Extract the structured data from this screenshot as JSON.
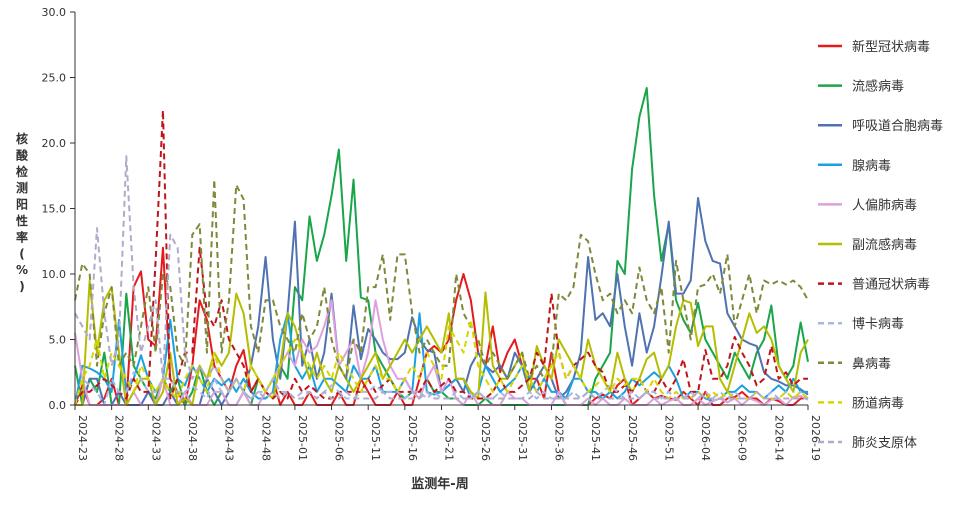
{
  "chart_data": {
    "type": "line",
    "ylabel": "核酸检测阳性率(%)",
    "xlabel": "监测年-周",
    "ylim": [
      0,
      30
    ],
    "yticks": [
      "0.0",
      "5.0",
      "10.0",
      "15.0",
      "20.0",
      "25.0",
      "30.0"
    ],
    "categories": [
      "2024-23",
      "2024-24",
      "2024-25",
      "2024-26",
      "2024-27",
      "2024-28",
      "2024-29",
      "2024-30",
      "2024-31",
      "2024-32",
      "2024-33",
      "2024-34",
      "2024-35",
      "2024-36",
      "2024-37",
      "2024-38",
      "2024-39",
      "2024-40",
      "2024-41",
      "2024-42",
      "2024-43",
      "2024-44",
      "2024-45",
      "2024-46",
      "2024-47",
      "2024-48",
      "2024-49",
      "2024-50",
      "2024-51",
      "2024-52",
      "2025-01",
      "2025-02",
      "2025-03",
      "2025-04",
      "2025-05",
      "2025-06",
      "2025-07",
      "2025-08",
      "2025-09",
      "2025-10",
      "2025-11",
      "2025-12",
      "2025-13",
      "2025-14",
      "2025-15",
      "2025-16",
      "2025-17",
      "2025-18",
      "2025-19",
      "2025-20",
      "2025-21",
      "2025-22",
      "2025-23",
      "2025-24",
      "2025-25",
      "2025-26",
      "2025-27",
      "2025-28",
      "2025-29",
      "2025-30",
      "2025-31",
      "2025-32",
      "2025-33",
      "2025-34",
      "2025-35",
      "2025-36",
      "2025-37",
      "2025-38",
      "2025-39",
      "2025-40",
      "2025-41",
      "2025-42",
      "2025-43",
      "2025-44",
      "2025-45",
      "2025-46",
      "2025-47",
      "2025-48",
      "2025-49",
      "2025-50",
      "2025-51",
      "2025-52",
      "2026-01",
      "2026-02",
      "2026-03",
      "2026-04",
      "2026-05",
      "2026-06",
      "2026-07",
      "2026-08",
      "2026-09",
      "2026-10",
      "2026-11",
      "2026-12",
      "2026-13",
      "2026-14",
      "2026-15",
      "2026-16",
      "2026-17",
      "2026-18",
      "2026-19"
    ],
    "xticks": [
      "2024-23",
      "2024-28",
      "2024-33",
      "2024-38",
      "2024-43",
      "2024-48",
      "2025-01",
      "2025-06",
      "2025-11",
      "2025-16",
      "2025-21",
      "2025-26",
      "2025-31",
      "2025-36",
      "2025-41",
      "2025-46",
      "2025-51",
      "2026-04",
      "2026-09",
      "2026-14",
      "2026-19"
    ],
    "legend_position": "right",
    "series": [
      {
        "name": "新型冠状病毒",
        "color": "#e41a1c",
        "dashed": false,
        "values": [
          0,
          1.5,
          0,
          0,
          0.5,
          2,
          0,
          0,
          9,
          10.2,
          5,
          4.5,
          12,
          2,
          1,
          0,
          3,
          8,
          6.5,
          3,
          2,
          1,
          3,
          4.2,
          1,
          2,
          1,
          2,
          0,
          1,
          0,
          0,
          1,
          0,
          0,
          0,
          1,
          0,
          0,
          2,
          1,
          0,
          0,
          0,
          1,
          0,
          0,
          2,
          4,
          4.5,
          4,
          5,
          8,
          10,
          8,
          4,
          3,
          6,
          2.5,
          4,
          5,
          3,
          2,
          2,
          0.5,
          4,
          1,
          0,
          0,
          0,
          0,
          0.5,
          0.8,
          0.5,
          1.5,
          2,
          0,
          0.5,
          1,
          0.5,
          0.7,
          0.5,
          0.4,
          1,
          0.5,
          0,
          1,
          0,
          0,
          0.5,
          0.6,
          1,
          0.5,
          0.5,
          0,
          0.5,
          0.3,
          0,
          0,
          0.5,
          0.5
        ]
      },
      {
        "name": "流感病毒",
        "color": "#1aa54a",
        "dashed": false,
        "values": [
          3,
          0,
          2,
          1,
          4,
          0,
          0,
          8.5,
          3,
          2,
          1,
          0.5,
          2,
          1,
          2,
          0,
          1,
          3,
          1,
          0,
          1,
          0,
          0,
          1,
          0,
          2,
          1,
          2,
          3,
          2,
          9,
          8,
          14.4,
          11,
          13,
          16,
          19.5,
          11,
          17.2,
          8.2,
          8,
          4,
          3,
          2,
          1,
          0.5,
          1,
          0.5,
          2,
          1,
          1,
          0.5,
          0.5,
          0,
          0,
          0,
          0.5,
          0,
          0,
          0,
          0,
          0,
          0,
          0,
          0,
          0,
          0,
          0,
          0,
          0,
          0,
          2,
          3,
          4,
          11,
          10,
          18,
          22,
          24.2,
          16,
          11,
          13.8,
          8,
          6.5,
          5.5,
          7.8,
          5,
          4,
          3,
          2,
          4,
          3,
          2,
          4,
          5,
          7.6,
          3,
          2,
          3,
          6.3,
          3.3
        ]
      },
      {
        "name": "呼吸道合胞病毒",
        "color": "#4f72b0",
        "dashed": false,
        "values": [
          0,
          0,
          2,
          2,
          0,
          0,
          1,
          0,
          0,
          0,
          1,
          0,
          0,
          1,
          0,
          1,
          0,
          0,
          2,
          1,
          0,
          1,
          2,
          1,
          3,
          6,
          11.3,
          5,
          2,
          7,
          14,
          3,
          5,
          2,
          4,
          8.5,
          3,
          2,
          7.6,
          3.5,
          5.8,
          5,
          4,
          3.5,
          3.5,
          4,
          6.7,
          5,
          4.2,
          4,
          1,
          1.5,
          2,
          1,
          3,
          4,
          3,
          2.5,
          3,
          2,
          4,
          3,
          1,
          2,
          3,
          2,
          0.5,
          1,
          2,
          4,
          11.3,
          6.5,
          7,
          6,
          10,
          6,
          3,
          7,
          4,
          6,
          9.8,
          14,
          8.5,
          8.5,
          9.5,
          15.8,
          12.5,
          11,
          10.8,
          7,
          6,
          5,
          4.7,
          4.5,
          2.5,
          2,
          1.8,
          1.5,
          1.5,
          1.2,
          0.8
        ]
      },
      {
        "name": "腺病毒",
        "color": "#1ba1e2",
        "dashed": false,
        "values": [
          0,
          3,
          2.8,
          2.5,
          2,
          1,
          6.5,
          1,
          2,
          3.8,
          2,
          1,
          2,
          6.5,
          2,
          1.5,
          3,
          2,
          1,
          2,
          1.5,
          2,
          1,
          2,
          1,
          0.5,
          0.5,
          1,
          5,
          7,
          3,
          2,
          3,
          1,
          2,
          2,
          1.5,
          1,
          3,
          2,
          2,
          3,
          1,
          1,
          1,
          2,
          1,
          7,
          1,
          0.8,
          1,
          1.5,
          2,
          2,
          0.5,
          1,
          3,
          2,
          1,
          1.5,
          2,
          3,
          2,
          1,
          2,
          1,
          1,
          0.5,
          2,
          2,
          1,
          1,
          0.5,
          1,
          0.5,
          1,
          2,
          1.5,
          2,
          2.5,
          2,
          3,
          2,
          0.5,
          1,
          1,
          0.5,
          0.3,
          0.5,
          1,
          1,
          1.5,
          1,
          1,
          0.5,
          1,
          1.5,
          1,
          2,
          1,
          1
        ]
      },
      {
        "name": "人偏肺病毒",
        "color": "#dda0dd",
        "dashed": false,
        "values": [
          5.5,
          2,
          0,
          0,
          0,
          0,
          0,
          0,
          1,
          0,
          0,
          0,
          2,
          0,
          0,
          1,
          0,
          0,
          0,
          1,
          1,
          0,
          0,
          1,
          0,
          0,
          1,
          2,
          3,
          4,
          3,
          5,
          4,
          4.5,
          6,
          8,
          3,
          4,
          5,
          2,
          4,
          8,
          5,
          3,
          2,
          2,
          1,
          0.5,
          2,
          3,
          1,
          2,
          0.5,
          0,
          1,
          0,
          0,
          0,
          0,
          1,
          0.5,
          0.5,
          0,
          0,
          0,
          0,
          1,
          0,
          0,
          0,
          0.5,
          0,
          0.5,
          0,
          0,
          0.5,
          0,
          0,
          0,
          0.5,
          0,
          0.3,
          0.5,
          0,
          0,
          0.5,
          0,
          0.3,
          0.5,
          0.2,
          0.5,
          0,
          0.5,
          0.3,
          0,
          0.4,
          0.5,
          0,
          0.6,
          0.7,
          0.4
        ]
      },
      {
        "name": "副流感病毒",
        "color": "#b5bd00",
        "dashed": false,
        "values": [
          0,
          0,
          9.5,
          4,
          8,
          9,
          4,
          0,
          1,
          2,
          2,
          0,
          1,
          4,
          0,
          0.5,
          0,
          3,
          2,
          4,
          3,
          4,
          8.5,
          7,
          3,
          2,
          1,
          0.5,
          3,
          7,
          6,
          4,
          2,
          4,
          2,
          1,
          3,
          2,
          1,
          2,
          3,
          4,
          2,
          3,
          4,
          5,
          4,
          5,
          6,
          5,
          4,
          7,
          2,
          2,
          1,
          0.5,
          8.6,
          3,
          2,
          2,
          3,
          4,
          1,
          4.5,
          3,
          2,
          5,
          4,
          3,
          2,
          5,
          3,
          2,
          1,
          4,
          2,
          1,
          2,
          3.5,
          4,
          2,
          3,
          6,
          8,
          7.8,
          4.5,
          6,
          6,
          2,
          1,
          3,
          5,
          7,
          5.5,
          6,
          5,
          3,
          2,
          1,
          4,
          5
        ]
      },
      {
        "name": "普通冠状病毒",
        "color": "#c0141a",
        "dashed": true,
        "values": [
          0,
          1,
          1,
          1.5,
          2,
          1.5,
          1,
          0.5,
          2,
          1,
          1,
          11,
          22.5,
          0.5,
          2,
          4,
          4,
          12,
          7,
          6,
          8,
          5,
          4,
          3,
          1,
          2,
          1,
          0.5,
          1,
          0.5,
          2,
          1,
          1.5,
          1,
          0.5,
          0.5,
          1,
          1,
          1,
          1,
          2,
          1,
          1.5,
          2,
          1,
          1,
          1,
          1,
          2,
          1,
          1.5,
          2,
          1,
          1,
          0.5,
          0.5,
          0.5,
          1,
          2,
          1,
          1,
          1.5,
          2,
          4,
          3,
          8.5,
          4,
          2,
          3,
          3.5,
          4,
          3,
          2.5,
          1,
          1,
          1.5,
          1,
          2,
          1,
          1,
          2,
          1,
          2,
          3.5,
          1,
          1,
          4.2,
          2,
          2,
          3,
          5.2,
          4,
          3,
          1.5,
          2,
          4.5,
          2,
          2.5,
          1.5,
          2,
          2
        ]
      },
      {
        "name": "博卡病毒",
        "color": "#a7b9e3",
        "dashed": true,
        "values": [
          0,
          2,
          1.5,
          1,
          0,
          2,
          1,
          1,
          2.5,
          2,
          1,
          1,
          2,
          2,
          1,
          1,
          1.5,
          1,
          0.5,
          2,
          1,
          1,
          2,
          1,
          0.5,
          1,
          1,
          2,
          1,
          1,
          0.5,
          1,
          1,
          0.5,
          1,
          1.5,
          1,
          0.5,
          0.5,
          1,
          1,
          1.5,
          1,
          1,
          1,
          0.5,
          1,
          1,
          0.5,
          1,
          0.5,
          0.5,
          1,
          0.5,
          0.5,
          1,
          0.5,
          0.5,
          1,
          0.5,
          0.5,
          0.5,
          1,
          0.5,
          1,
          0.5,
          0.5,
          0.5,
          1,
          0.5,
          1,
          0.5,
          1,
          1.5,
          1,
          0.5,
          1,
          0.5,
          1,
          1,
          0.5,
          1,
          0.5,
          0.5,
          1,
          0.5,
          1,
          0.5,
          1,
          0.5,
          1,
          0.5,
          0.5,
          1,
          0.5,
          1,
          0.5,
          1,
          0.5,
          1,
          0.5
        ]
      },
      {
        "name": "鼻病毒",
        "color": "#7e8a3a",
        "dashed": true,
        "values": [
          8,
          10.8,
          10,
          3,
          7,
          9,
          3,
          4,
          3,
          6,
          9,
          4,
          10,
          9,
          4,
          3,
          13,
          13.8,
          4,
          17.2,
          4,
          8,
          16.8,
          15.7,
          6,
          4,
          8,
          8,
          6,
          5,
          4,
          7,
          5,
          6,
          9,
          5,
          3,
          2,
          5,
          4,
          9,
          9,
          11.5,
          6.5,
          11.5,
          11.5,
          7,
          4,
          5,
          4,
          3,
          3,
          10,
          7,
          6,
          5,
          3,
          4,
          3,
          2,
          3,
          4,
          2,
          3,
          2,
          3,
          8.5,
          8,
          9,
          13,
          12.5,
          10,
          8,
          8.5,
          7,
          8,
          7,
          10.5,
          8,
          7,
          9,
          4,
          11,
          8,
          5,
          9,
          9.2,
          10,
          8.5,
          11.5,
          6,
          8,
          10,
          7,
          9.5,
          9.2,
          9.5,
          9.2,
          9.5,
          9,
          8
        ]
      },
      {
        "name": "肠道病毒",
        "color": "#d6d600",
        "dashed": true,
        "values": [
          0,
          2,
          3,
          5,
          2,
          4,
          3,
          2,
          1,
          3,
          2,
          1,
          2,
          1,
          0.5,
          2,
          3,
          2,
          1,
          4,
          2,
          1,
          2,
          1,
          3,
          2,
          1,
          2,
          3,
          4,
          5,
          4,
          3,
          2,
          3,
          2,
          4,
          3,
          2,
          1,
          2,
          3,
          2,
          2,
          1,
          2,
          3,
          2,
          4,
          3,
          2,
          6,
          5,
          4,
          6.5,
          3,
          2,
          1,
          2,
          1,
          2,
          3,
          2,
          1,
          2,
          3,
          4,
          2,
          3,
          2,
          1,
          1.5,
          2,
          1,
          2,
          1.5,
          2,
          2,
          1,
          2,
          1,
          0.5,
          1,
          0.5,
          0.5,
          1,
          0.5,
          1,
          0.5,
          1,
          0.5,
          0.5,
          0.5,
          1,
          0.5,
          0.5,
          0.5,
          1,
          0.5,
          1,
          0.5
        ]
      },
      {
        "name": "肺炎支原体",
        "color": "#b3a9c9",
        "dashed": true,
        "values": [
          7,
          6,
          5,
          13.5,
          7,
          3,
          5,
          19,
          9,
          4,
          6,
          8,
          2,
          13,
          12,
          4,
          2,
          3,
          2,
          3,
          2,
          1,
          2,
          1,
          0.5,
          1,
          0.5,
          1,
          0.5,
          1,
          0.5,
          0.5,
          1,
          0.5,
          1,
          0.5,
          0.5,
          1,
          0.5,
          0.5,
          0.5,
          0.5,
          1,
          0.5,
          0.5,
          0.5,
          0.5,
          0.5,
          1,
          0.5,
          0.5,
          0.5,
          0.5,
          0.5,
          0.5,
          1,
          0.5,
          0.5,
          0.5,
          0.5,
          0.5,
          0.5,
          0.5,
          1,
          0.5,
          0.5,
          0.5,
          0.5,
          0.5,
          0.5,
          1,
          0.5,
          0.5,
          0.5,
          0.5,
          0.5,
          0.5,
          0.5,
          1,
          0.5,
          0.5,
          0.5,
          0.5,
          0.5,
          0.5,
          1,
          0.5,
          0.5,
          0.5,
          0.5,
          0.5,
          0.5,
          0.5,
          1,
          0.5,
          0.5,
          0.5,
          0.5,
          0.5,
          0.5,
          0.5
        ]
      }
    ]
  }
}
